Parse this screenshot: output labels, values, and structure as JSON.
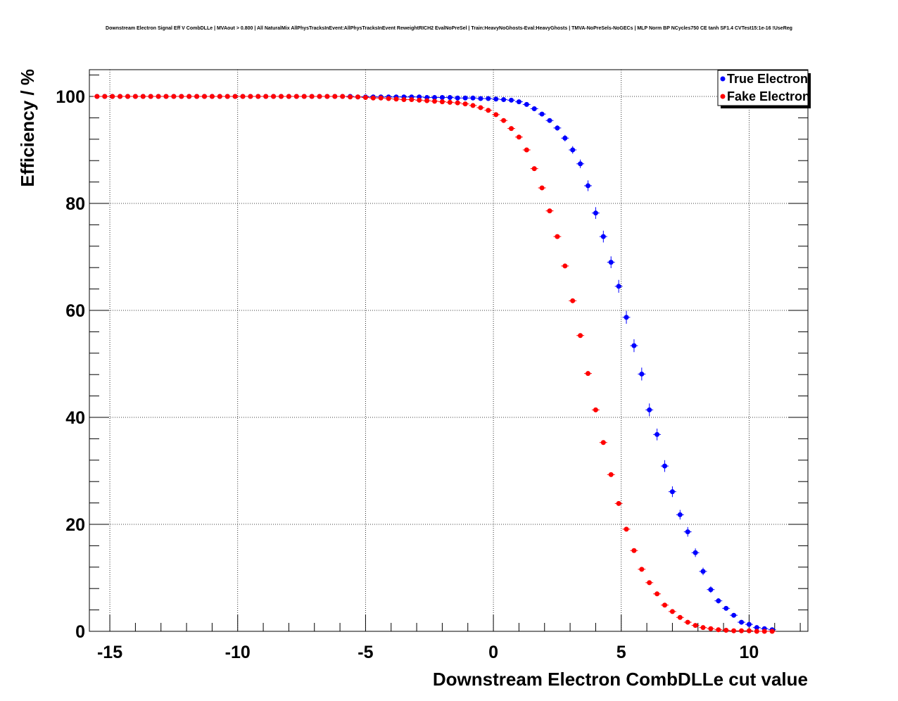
{
  "chart_data": {
    "type": "scatter",
    "title": "Downstream Electron Signal Eff V CombDLLe | MVAout > 0.800 | All NaturalMix AllPhysTracksInEvent:AllPhysTracksInEvent ReweightRICH2 EvalNoPreSel | Train:HeavyNoGhosts-Eval:HeavyGhosts | TMVA-NoPreSels-NoGECs | MLP Norm BP NCycles750 CE tanh SF1.4 CVTest15:1e-16 !UseReg",
    "xlabel": "Downstream Electron CombDLLe cut value",
    "ylabel": "Efficiency / %",
    "xlim": [
      -15.8,
      12.3
    ],
    "ylim": [
      0,
      105
    ],
    "x_ticks": [
      -15,
      -10,
      -5,
      0,
      5,
      10
    ],
    "x_tick_labels": [
      "-15",
      "-10",
      "-5",
      "0",
      "5",
      "10"
    ],
    "y_ticks": [
      0,
      20,
      40,
      60,
      80,
      100
    ],
    "y_tick_labels": [
      "0",
      "20",
      "40",
      "60",
      "80",
      "100"
    ],
    "grid": true,
    "legend": "top-right",
    "x_start": -15.5,
    "x_step": 0.3,
    "series": [
      {
        "name": "True Electron",
        "color": "#0000ff",
        "values": [
          100.0,
          100.0,
          100.0,
          100.0,
          100.0,
          100.0,
          100.0,
          100.0,
          100.0,
          100.0,
          100.0,
          100.0,
          100.0,
          100.0,
          100.0,
          100.0,
          100.0,
          100.0,
          100.0,
          100.0,
          100.0,
          100.0,
          100.0,
          100.0,
          100.0,
          100.0,
          100.0,
          100.0,
          100.0,
          100.0,
          100.0,
          100.0,
          100.0,
          100.0,
          99.9,
          99.9,
          99.9,
          99.9,
          99.9,
          99.9,
          99.9,
          99.9,
          99.9,
          99.8,
          99.8,
          99.8,
          99.8,
          99.7,
          99.7,
          99.7,
          99.6,
          99.6,
          99.5,
          99.4,
          99.3,
          99.0,
          98.5,
          97.7,
          96.7,
          95.5,
          94.1,
          92.2,
          90.0,
          87.4,
          83.3,
          78.2,
          73.8,
          69.0,
          64.5,
          58.7,
          53.4,
          48.1,
          41.4,
          36.8,
          30.9,
          26.1,
          21.8,
          18.6,
          14.7,
          11.2,
          7.8,
          5.7,
          4.3,
          3.0,
          1.7,
          1.3,
          0.7,
          0.5,
          0.3
        ],
        "errors": [
          0,
          0,
          0,
          0,
          0,
          0,
          0,
          0,
          0,
          0,
          0,
          0,
          0,
          0,
          0,
          0,
          0,
          0,
          0,
          0,
          0,
          0,
          0,
          0,
          0,
          0,
          0,
          0,
          0,
          0,
          0,
          0,
          0,
          0,
          0,
          0,
          0,
          0,
          0,
          0,
          0,
          0,
          0,
          0,
          0,
          0,
          0,
          0,
          0,
          0,
          0,
          0,
          0.1,
          0.1,
          0.1,
          0.1,
          0.2,
          0.2,
          0.3,
          0.4,
          0.5,
          0.6,
          0.7,
          0.8,
          1.0,
          1.1,
          1.1,
          1.1,
          1.2,
          1.2,
          1.2,
          1.2,
          1.2,
          1.1,
          1.1,
          1.0,
          0.9,
          0.9,
          0.8,
          0.7,
          0.6,
          0.5,
          0.4,
          0.3,
          0.3,
          0.2,
          0.2,
          0.1,
          0.1
        ]
      },
      {
        "name": "Fake Electron",
        "color": "#ff0000",
        "values": [
          100.0,
          100.0,
          100.0,
          100.0,
          100.0,
          100.0,
          100.0,
          100.0,
          100.0,
          100.0,
          100.0,
          100.0,
          100.0,
          100.0,
          100.0,
          100.0,
          100.0,
          100.0,
          100.0,
          100.0,
          100.0,
          100.0,
          100.0,
          100.0,
          100.0,
          100.0,
          100.0,
          100.0,
          100.0,
          100.0,
          100.0,
          100.0,
          100.0,
          99.9,
          99.9,
          99.8,
          99.7,
          99.7,
          99.6,
          99.5,
          99.4,
          99.4,
          99.3,
          99.2,
          99.1,
          99.0,
          98.9,
          98.8,
          98.6,
          98.3,
          97.9,
          97.4,
          96.6,
          95.5,
          94.0,
          92.4,
          90.0,
          86.5,
          82.9,
          78.6,
          73.8,
          68.3,
          61.8,
          55.3,
          48.2,
          41.4,
          35.3,
          29.3,
          23.9,
          19.1,
          15.1,
          11.6,
          9.1,
          7.0,
          4.9,
          3.7,
          2.6,
          1.7,
          1.1,
          0.7,
          0.5,
          0.3,
          0.2,
          0.1,
          0.1,
          0.1,
          0.0,
          0.0,
          0.0
        ],
        "errors": [
          0,
          0,
          0,
          0,
          0,
          0,
          0,
          0,
          0,
          0,
          0,
          0,
          0,
          0,
          0,
          0,
          0,
          0,
          0,
          0,
          0,
          0,
          0,
          0,
          0,
          0,
          0,
          0,
          0,
          0,
          0,
          0,
          0,
          0,
          0,
          0,
          0,
          0,
          0,
          0,
          0,
          0,
          0,
          0,
          0,
          0,
          0,
          0,
          0,
          0,
          0,
          0,
          0,
          0,
          0,
          0,
          0,
          0,
          0,
          0,
          0.1,
          0.1,
          0.1,
          0.1,
          0.1,
          0.1,
          0.1,
          0.1,
          0.1,
          0.1,
          0.1,
          0.1,
          0.1,
          0.1,
          0.1,
          0.1,
          0,
          0,
          0,
          0,
          0,
          0,
          0,
          0,
          0,
          0,
          0,
          0,
          0
        ]
      }
    ]
  }
}
